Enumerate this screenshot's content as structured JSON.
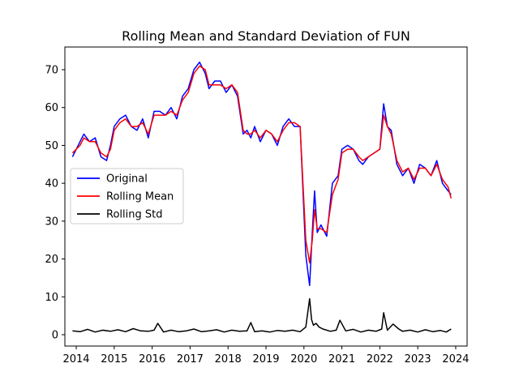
{
  "chart_data": {
    "type": "line",
    "title": "Rolling Mean and Standard Deviation of FUN",
    "xlabel": "",
    "ylabel": "",
    "xlim": [
      2013.7,
      2024.3
    ],
    "ylim": [
      -3,
      76
    ],
    "x_ticks": [
      2014,
      2015,
      2016,
      2017,
      2018,
      2019,
      2020,
      2021,
      2022,
      2023,
      2024
    ],
    "y_ticks": [
      0,
      10,
      20,
      30,
      40,
      50,
      60,
      70
    ],
    "grid": false,
    "legend_position": "center-left",
    "series": [
      {
        "name": "Original",
        "color": "#0000ff",
        "x": [
          2013.9,
          2014.1,
          2014.2,
          2014.35,
          2014.5,
          2014.65,
          2014.8,
          2014.9,
          2015.0,
          2015.15,
          2015.3,
          2015.45,
          2015.6,
          2015.75,
          2015.9,
          2016.05,
          2016.2,
          2016.35,
          2016.5,
          2016.65,
          2016.8,
          2016.95,
          2017.1,
          2017.25,
          2017.4,
          2017.5,
          2017.65,
          2017.8,
          2017.95,
          2018.1,
          2018.25,
          2018.4,
          2018.5,
          2018.6,
          2018.7,
          2018.85,
          2019.0,
          2019.15,
          2019.3,
          2019.45,
          2019.6,
          2019.75,
          2019.9,
          2020.05,
          2020.15,
          2020.22,
          2020.28,
          2020.35,
          2020.45,
          2020.6,
          2020.75,
          2020.9,
          2021.0,
          2021.15,
          2021.3,
          2021.45,
          2021.55,
          2021.7,
          2021.85,
          2022.0,
          2022.1,
          2022.2,
          2022.3,
          2022.45,
          2022.6,
          2022.75,
          2022.9,
          2023.05,
          2023.2,
          2023.35,
          2023.5,
          2023.65,
          2023.8,
          2023.88
        ],
        "values": [
          47,
          51,
          53,
          51,
          52,
          47,
          46,
          50,
          55,
          57,
          58,
          55,
          54,
          57,
          52,
          59,
          59,
          58,
          60,
          57,
          63,
          65,
          70,
          72,
          69,
          65,
          67,
          67,
          64,
          66,
          63,
          53,
          54,
          52,
          55,
          51,
          54,
          53,
          50,
          55,
          57,
          55,
          55,
          21,
          13,
          27,
          38,
          27,
          29,
          26,
          40,
          42,
          49,
          50,
          49,
          46,
          45,
          47,
          48,
          49,
          61,
          55,
          54,
          45,
          42,
          44,
          40,
          45,
          44,
          42,
          46,
          40,
          38,
          37
        ]
      },
      {
        "name": "Rolling Mean",
        "color": "#ff0000",
        "x": [
          2013.9,
          2014.1,
          2014.2,
          2014.35,
          2014.5,
          2014.65,
          2014.8,
          2014.9,
          2015.0,
          2015.15,
          2015.3,
          2015.45,
          2015.6,
          2015.75,
          2015.9,
          2016.05,
          2016.2,
          2016.35,
          2016.5,
          2016.65,
          2016.8,
          2016.95,
          2017.1,
          2017.25,
          2017.4,
          2017.5,
          2017.65,
          2017.8,
          2017.95,
          2018.1,
          2018.25,
          2018.4,
          2018.5,
          2018.6,
          2018.7,
          2018.85,
          2019.0,
          2019.15,
          2019.3,
          2019.45,
          2019.6,
          2019.75,
          2019.9,
          2020.05,
          2020.15,
          2020.22,
          2020.28,
          2020.35,
          2020.45,
          2020.6,
          2020.75,
          2020.9,
          2021.0,
          2021.15,
          2021.3,
          2021.45,
          2021.55,
          2021.7,
          2021.85,
          2022.0,
          2022.1,
          2022.2,
          2022.3,
          2022.45,
          2022.6,
          2022.75,
          2022.9,
          2023.05,
          2023.2,
          2023.35,
          2023.5,
          2023.65,
          2023.8,
          2023.88
        ],
        "values": [
          48,
          50,
          52,
          51,
          51,
          48,
          47,
          49,
          54,
          56,
          57,
          55,
          55,
          56,
          53,
          58,
          58,
          58,
          59,
          58,
          62,
          64,
          69,
          71,
          70,
          66,
          66,
          66,
          65,
          66,
          64,
          54,
          53,
          53,
          54,
          52,
          54,
          53,
          51,
          54,
          56,
          56,
          55,
          25,
          19,
          25,
          33,
          28,
          28,
          27,
          37,
          41,
          48,
          49,
          49,
          47,
          46,
          47,
          48,
          49,
          58,
          55,
          53,
          46,
          43,
          44,
          41,
          44,
          44,
          42,
          45,
          41,
          39,
          36
        ]
      },
      {
        "name": "Rolling Std",
        "color": "#000000",
        "x": [
          2013.9,
          2014.1,
          2014.3,
          2014.5,
          2014.7,
          2014.9,
          2015.1,
          2015.3,
          2015.5,
          2015.7,
          2015.9,
          2016.05,
          2016.15,
          2016.3,
          2016.5,
          2016.7,
          2016.9,
          2017.1,
          2017.3,
          2017.5,
          2017.7,
          2017.9,
          2018.1,
          2018.3,
          2018.5,
          2018.6,
          2018.7,
          2018.9,
          2019.1,
          2019.3,
          2019.5,
          2019.7,
          2019.9,
          2020.05,
          2020.15,
          2020.2,
          2020.25,
          2020.32,
          2020.4,
          2020.5,
          2020.7,
          2020.85,
          2020.95,
          2021.1,
          2021.3,
          2021.5,
          2021.7,
          2021.9,
          2022.05,
          2022.1,
          2022.2,
          2022.35,
          2022.5,
          2022.6,
          2022.8,
          2023.0,
          2023.2,
          2023.4,
          2023.6,
          2023.75,
          2023.88
        ],
        "values": [
          1.0,
          0.8,
          1.4,
          0.7,
          1.2,
          0.9,
          1.3,
          0.8,
          1.6,
          1.0,
          0.9,
          1.2,
          3.0,
          0.7,
          1.2,
          0.8,
          1.0,
          1.5,
          0.8,
          1.0,
          1.3,
          0.7,
          1.2,
          0.9,
          1.0,
          3.2,
          0.8,
          1.0,
          0.7,
          1.1,
          0.9,
          1.2,
          0.8,
          2.0,
          9.5,
          4.0,
          2.5,
          3.0,
          2.0,
          1.5,
          0.9,
          1.2,
          3.8,
          1.0,
          1.4,
          0.7,
          1.2,
          0.9,
          1.5,
          5.8,
          1.2,
          2.8,
          1.5,
          0.9,
          1.2,
          0.7,
          1.3,
          0.8,
          1.1,
          0.7,
          1.5
        ]
      }
    ]
  }
}
